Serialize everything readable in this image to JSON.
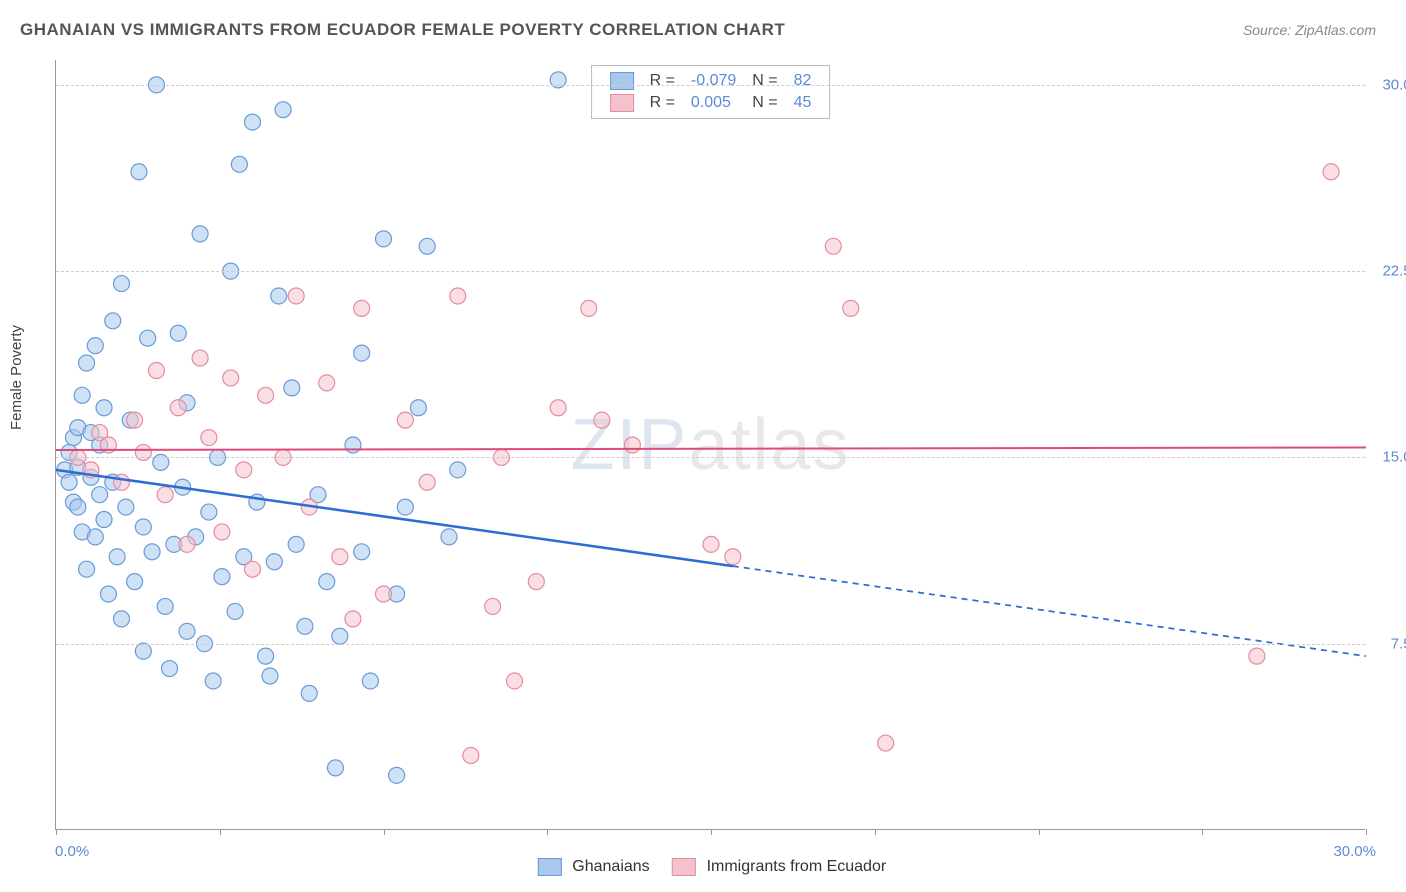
{
  "title": "GHANAIAN VS IMMIGRANTS FROM ECUADOR FEMALE POVERTY CORRELATION CHART",
  "source": "Source: ZipAtlas.com",
  "ylabel": "Female Poverty",
  "watermark_1": "ZIP",
  "watermark_2": "atlas",
  "chart": {
    "type": "scatter",
    "background_color": "#ffffff",
    "grid_color": "#cccccc",
    "axis_color": "#999999",
    "label_color_axis": "#5b8bd4",
    "xlim": [
      0,
      30
    ],
    "ylim": [
      0,
      31
    ],
    "x_ticks": [
      0,
      3.75,
      7.5,
      11.25,
      15,
      18.75,
      22.5,
      26.25,
      30
    ],
    "x_tick_labels_shown": {
      "0": "0.0%",
      "30": "30.0%"
    },
    "y_gridlines": [
      7.5,
      15,
      22.5,
      30
    ],
    "y_tick_labels": {
      "7.5": "7.5%",
      "15": "15.0%",
      "22.5": "22.5%",
      "30": "30.0%"
    },
    "marker_radius": 8,
    "marker_opacity": 0.55,
    "series": [
      {
        "name": "Ghanaians",
        "fill_color": "#a8c8ec",
        "stroke_color": "#6a9bd8",
        "r_value": "-0.079",
        "n_value": "82",
        "trend": {
          "color": "#2d6cd0",
          "width": 2.5,
          "solid_range_x": [
            0,
            15.5
          ],
          "y_at_x0": 14.5,
          "y_at_xmax": 7.0
        },
        "points": [
          [
            0.2,
            14.5
          ],
          [
            0.3,
            15.2
          ],
          [
            0.3,
            14.0
          ],
          [
            0.4,
            13.2
          ],
          [
            0.4,
            15.8
          ],
          [
            0.5,
            14.6
          ],
          [
            0.5,
            13.0
          ],
          [
            0.5,
            16.2
          ],
          [
            0.6,
            17.5
          ],
          [
            0.6,
            12.0
          ],
          [
            0.7,
            18.8
          ],
          [
            0.7,
            10.5
          ],
          [
            0.8,
            16.0
          ],
          [
            0.8,
            14.2
          ],
          [
            0.9,
            11.8
          ],
          [
            0.9,
            19.5
          ],
          [
            1.0,
            13.5
          ],
          [
            1.0,
            15.5
          ],
          [
            1.1,
            12.5
          ],
          [
            1.1,
            17.0
          ],
          [
            1.2,
            9.5
          ],
          [
            1.3,
            20.5
          ],
          [
            1.3,
            14.0
          ],
          [
            1.4,
            11.0
          ],
          [
            1.5,
            22.0
          ],
          [
            1.5,
            8.5
          ],
          [
            1.6,
            13.0
          ],
          [
            1.7,
            16.5
          ],
          [
            1.8,
            10.0
          ],
          [
            1.9,
            26.5
          ],
          [
            2.0,
            12.2
          ],
          [
            2.0,
            7.2
          ],
          [
            2.1,
            19.8
          ],
          [
            2.2,
            11.2
          ],
          [
            2.3,
            30.0
          ],
          [
            2.4,
            14.8
          ],
          [
            2.5,
            9.0
          ],
          [
            2.6,
            6.5
          ],
          [
            2.7,
            11.5
          ],
          [
            2.8,
            20.0
          ],
          [
            2.9,
            13.8
          ],
          [
            3.0,
            8.0
          ],
          [
            3.0,
            17.2
          ],
          [
            3.2,
            11.8
          ],
          [
            3.3,
            24.0
          ],
          [
            3.4,
            7.5
          ],
          [
            3.5,
            12.8
          ],
          [
            3.6,
            6.0
          ],
          [
            3.7,
            15.0
          ],
          [
            3.8,
            10.2
          ],
          [
            4.0,
            22.5
          ],
          [
            4.1,
            8.8
          ],
          [
            4.2,
            26.8
          ],
          [
            4.3,
            11.0
          ],
          [
            4.5,
            28.5
          ],
          [
            4.6,
            13.2
          ],
          [
            4.8,
            7.0
          ],
          [
            4.9,
            6.2
          ],
          [
            5.0,
            10.8
          ],
          [
            5.1,
            21.5
          ],
          [
            5.2,
            29.0
          ],
          [
            5.4,
            17.8
          ],
          [
            5.5,
            11.5
          ],
          [
            5.7,
            8.2
          ],
          [
            5.8,
            5.5
          ],
          [
            6.0,
            13.5
          ],
          [
            6.2,
            10.0
          ],
          [
            6.4,
            2.5
          ],
          [
            6.5,
            7.8
          ],
          [
            6.8,
            15.5
          ],
          [
            7.0,
            11.2
          ],
          [
            7.2,
            6.0
          ],
          [
            7.5,
            23.8
          ],
          [
            7.8,
            9.5
          ],
          [
            7.8,
            2.2
          ],
          [
            8.0,
            13.0
          ],
          [
            8.3,
            17.0
          ],
          [
            8.5,
            23.5
          ],
          [
            9.0,
            11.8
          ],
          [
            9.2,
            14.5
          ],
          [
            11.5,
            30.2
          ],
          [
            7.0,
            19.2
          ]
        ]
      },
      {
        "name": "Immigrants from Ecuador",
        "fill_color": "#f4c2cc",
        "stroke_color": "#e58ca0",
        "r_value": "0.005",
        "n_value": "45",
        "trend": {
          "color": "#e04a78",
          "width": 2,
          "solid_range_x": [
            0,
            30
          ],
          "y_at_x0": 15.3,
          "y_at_xmax": 15.4
        },
        "points": [
          [
            0.5,
            15.0
          ],
          [
            0.8,
            14.5
          ],
          [
            1.0,
            16.0
          ],
          [
            1.2,
            15.5
          ],
          [
            1.5,
            14.0
          ],
          [
            1.8,
            16.5
          ],
          [
            2.0,
            15.2
          ],
          [
            2.3,
            18.5
          ],
          [
            2.5,
            13.5
          ],
          [
            2.8,
            17.0
          ],
          [
            3.0,
            11.5
          ],
          [
            3.3,
            19.0
          ],
          [
            3.5,
            15.8
          ],
          [
            3.8,
            12.0
          ],
          [
            4.0,
            18.2
          ],
          [
            4.3,
            14.5
          ],
          [
            4.5,
            10.5
          ],
          [
            4.8,
            17.5
          ],
          [
            5.2,
            15.0
          ],
          [
            5.5,
            21.5
          ],
          [
            5.8,
            13.0
          ],
          [
            6.2,
            18.0
          ],
          [
            6.5,
            11.0
          ],
          [
            7.0,
            21.0
          ],
          [
            7.5,
            9.5
          ],
          [
            8.0,
            16.5
          ],
          [
            8.5,
            14.0
          ],
          [
            9.2,
            21.5
          ],
          [
            9.5,
            3.0
          ],
          [
            10.0,
            9.0
          ],
          [
            10.2,
            15.0
          ],
          [
            10.5,
            6.0
          ],
          [
            11.0,
            10.0
          ],
          [
            11.5,
            17.0
          ],
          [
            12.2,
            21.0
          ],
          [
            12.5,
            16.5
          ],
          [
            13.2,
            15.5
          ],
          [
            15.0,
            11.5
          ],
          [
            15.5,
            11.0
          ],
          [
            17.8,
            23.5
          ],
          [
            18.2,
            21.0
          ],
          [
            19.0,
            3.5
          ],
          [
            27.5,
            7.0
          ],
          [
            29.2,
            26.5
          ],
          [
            6.8,
            8.5
          ]
        ]
      }
    ]
  },
  "legend_top": {
    "r_label": "R =",
    "n_label": "N ="
  },
  "legend_bottom": {
    "items": [
      "Ghanaians",
      "Immigrants from Ecuador"
    ]
  }
}
